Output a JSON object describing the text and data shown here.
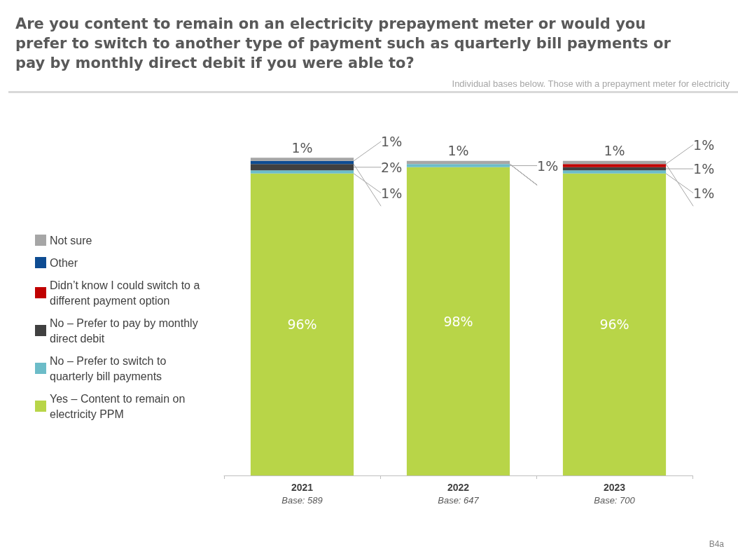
{
  "chart_data": {
    "type": "bar",
    "stacked": true,
    "title": "Are you content to remain on an electricity prepayment meter or would you prefer to switch to another type of payment such as quarterly bill payments or pay by monthly direct debit if you were able to?",
    "subtitle": "Individual bases below. Those with a prepayment meter for electricity",
    "categories": [
      "2021\nBase: 589",
      "2022\nBase: 647",
      "2023\nBase: 700"
    ],
    "series": [
      {
        "name": "Yes – Content to remain on electricity PPM",
        "color": "#b8d548",
        "values": [
          96,
          98,
          96
        ],
        "value_labels": [
          "96%",
          "98%",
          "96%"
        ]
      },
      {
        "name": "No – Prefer to switch to quarterly bill payments",
        "color": "#6cbcc8",
        "values": [
          1,
          1,
          1
        ],
        "value_labels": [
          "1%",
          "1%",
          "1%"
        ]
      },
      {
        "name": "No – Prefer to pay by monthly direct debit",
        "color": "#404040",
        "values": [
          2,
          0,
          1
        ],
        "value_labels": [
          "2%",
          null,
          "1%"
        ]
      },
      {
        "name": "Didn’t know I could switch to a different payment option",
        "color": "#c00000",
        "values": [
          0,
          0,
          1
        ],
        "value_labels": [
          null,
          null,
          "1%"
        ]
      },
      {
        "name": "Other",
        "color": "#0e4c92",
        "values": [
          1,
          0,
          0
        ],
        "value_labels": [
          "1%",
          null,
          null
        ]
      },
      {
        "name": "Not sure",
        "color": "#a6a6a6",
        "values": [
          1,
          1,
          1
        ],
        "value_labels": [
          "1%",
          "1%",
          "1%"
        ]
      }
    ],
    "annotations": [
      "B4a"
    ],
    "legend": "left",
    "tick_labels": "x"
  }
}
